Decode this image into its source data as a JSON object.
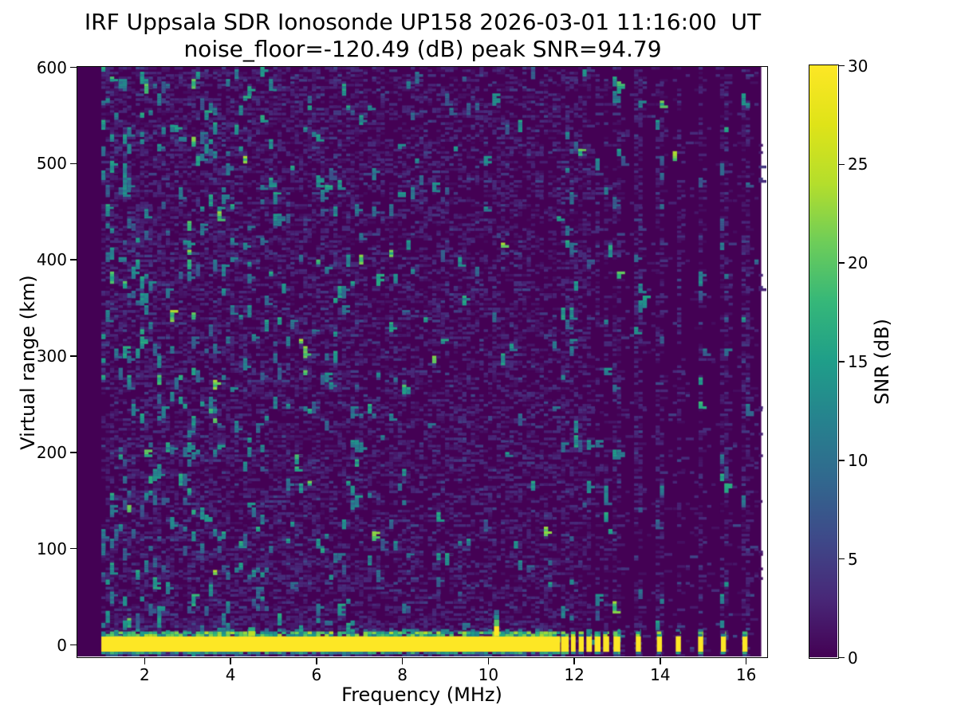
{
  "figure": {
    "title_line1": "IRF Uppsala SDR Ionosonde UP158 2026-03-01 11:16:00  UT",
    "title_line2": "noise_floor=-120.49 (dB) peak SNR=94.79",
    "background_color": "#ffffff",
    "text_color": "#000000"
  },
  "axes": {
    "xlabel": "Frequency (MHz)",
    "ylabel": "Virtual range (km)",
    "x_ticks": [
      2,
      4,
      6,
      8,
      10,
      12,
      14,
      16
    ],
    "y_ticks": [
      0,
      100,
      200,
      300,
      400,
      500,
      600
    ],
    "xlim": [
      0.442,
      16.48
    ],
    "ylim": [
      -12.4,
      600
    ],
    "grid": false
  },
  "colorbar": {
    "label": "SNR (dB)",
    "ticks": [
      0,
      5,
      10,
      15,
      20,
      25,
      30
    ],
    "min": 0,
    "max": 30,
    "colormap": "viridis",
    "colormap_stops": [
      [
        0.0,
        "#440154"
      ],
      [
        0.1,
        "#482878"
      ],
      [
        0.2,
        "#3e4989"
      ],
      [
        0.3,
        "#31688e"
      ],
      [
        0.4,
        "#26828e"
      ],
      [
        0.5,
        "#1f9e89"
      ],
      [
        0.6,
        "#35b779"
      ],
      [
        0.7,
        "#6dcd59"
      ],
      [
        0.8,
        "#b4de2c"
      ],
      [
        0.9,
        "#dfe318"
      ],
      [
        1.0,
        "#fde725"
      ]
    ]
  },
  "chart_data": {
    "type": "heatmap",
    "title": "IRF Uppsala SDR Ionosonde UP158 2026-03-01 11:16:00  UT",
    "subtitle": "noise_floor=-120.49 (dB) peak SNR=94.79",
    "xlabel": "Frequency (MHz)",
    "ylabel": "Virtual range (km)",
    "value_label": "SNR (dB)",
    "noise_floor_db": -120.49,
    "peak_snr_db": 94.79,
    "x_range_mhz": [
      1.0,
      16.36
    ],
    "y_range_km": [
      -12.4,
      600
    ],
    "snr_scale_db": [
      0,
      30
    ],
    "background_snr_db": 0,
    "ground_echo": {
      "snr_db": 30,
      "band_km": [
        -7.6,
        8.6
      ],
      "continuous_mhz": [
        1.0,
        11.68
      ],
      "cluster_segments_mhz": [
        [
          11.7,
          11.88
        ],
        [
          11.93,
          12.04
        ],
        [
          12.11,
          12.23
        ],
        [
          12.29,
          12.42
        ],
        [
          12.48,
          12.62
        ],
        [
          12.68,
          12.82
        ],
        [
          12.92,
          13.08
        ]
      ],
      "isolated_bars_mhz": [
        13.5,
        13.99,
        14.43,
        14.95,
        15.48,
        15.98
      ],
      "bar_width_mhz": 0.12,
      "fringe_top_km": [
        8.6,
        16.0
      ],
      "fringe_bottom_km": [
        -10.1,
        -7.6
      ]
    },
    "echo_spike": {
      "mhz": 10.2,
      "width_mhz": 0.12,
      "top_km": 36,
      "peak_snr_db": 30
    },
    "band_bump": {
      "mhz": 4.5,
      "width_mhz": 0.16,
      "top_km": 18,
      "snr_db": 22
    },
    "noise_texture": {
      "cell_size": {
        "mhz": 0.1,
        "km": 2.5
      },
      "faint_dash_db": [
        1,
        4
      ],
      "speckle_db": [
        8,
        24
      ],
      "dense_noise_mhz": [
        1.0,
        11.68
      ],
      "quiet_region_mhz": [
        11.68,
        16.36
      ],
      "elevated_rows_km": [
        10,
        30
      ],
      "speckle_density_by_mhz": {
        "1.0-1.25": 0.05,
        "1.25-4": 0.035,
        "4-7": 0.02,
        "7-9.5": 0.01,
        "9.5-11.68": 0.005
      },
      "vertical_stripe_columns_mhz": [
        11.79,
        11.985,
        12.17,
        12.355,
        12.55,
        12.75,
        13.0,
        13.5,
        13.99,
        14.43,
        14.95,
        15.48,
        15.98
      ]
    },
    "no_data_right_edge_mhz": [
      16.36,
      16.48
    ],
    "render_seed": 7
  }
}
